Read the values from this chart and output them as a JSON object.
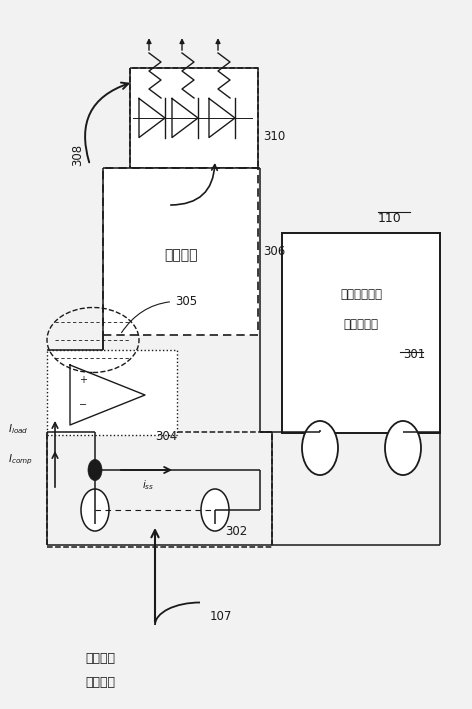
{
  "bg": "#f2f2f2",
  "lc": "#1a1a1a",
  "figsize": [
    4.72,
    7.09
  ],
  "dpi": 100,
  "driver_text": "ドライバ",
  "trans1": "電子トランス",
  "trans2": "安定化回路",
  "trans_out1": "トランス",
  "trans_out2": "出力信号",
  "label_308": "308",
  "label_310": "310",
  "label_306": "306",
  "label_305": "305",
  "label_304": "304",
  "label_302": "302",
  "label_301": "301",
  "label_110": "110",
  "label_107": "107"
}
